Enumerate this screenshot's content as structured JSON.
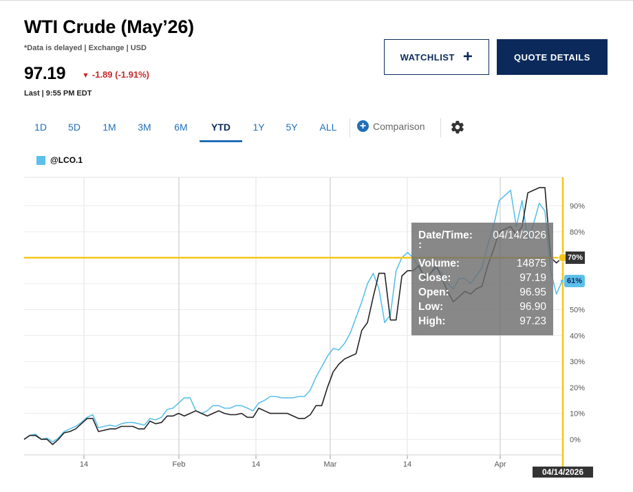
{
  "header": {
    "title": "WTI Crude (May’26)",
    "subtitle": "*Data is delayed | Exchange | USD",
    "price": "97.19",
    "change": "-1.89 (-1.91%)",
    "last_time": "Last | 9:55 PM EDT",
    "change_color": "#c62828"
  },
  "buttons": {
    "watchlist_label": "WATCHLIST",
    "quote_details_label": "QUOTE DETAILS"
  },
  "tabs": [
    {
      "label": "1D"
    },
    {
      "label": "5D"
    },
    {
      "label": "1M"
    },
    {
      "label": "3M"
    },
    {
      "label": "6M"
    },
    {
      "label": "YTD",
      "active": true
    },
    {
      "label": "1Y"
    },
    {
      "label": "5Y"
    },
    {
      "label": "ALL"
    }
  ],
  "comparison_label": "Comparison",
  "legend": {
    "series_name": "@LCO.1",
    "color": "#5bc0eb"
  },
  "tooltip": {
    "datetime_label": "Date/Time:",
    "datetime_value": "04/14/2026",
    "colon": ":",
    "volume_label": "Volume:",
    "volume_value": "14875",
    "close_label": "Close:",
    "close_value": "97.19",
    "open_label": "Open:",
    "open_value": "96.95",
    "low_label": "Low:",
    "low_value": "96.90",
    "high_label": "High:",
    "high_value": "97.23"
  },
  "crosshair": {
    "date_label": "04/14/2026",
    "y_tag": "70%",
    "series_tag": "61%",
    "color": "#f5c518"
  },
  "chart_data": {
    "type": "line",
    "x_ticks": [
      "14",
      "Feb",
      "14",
      "Mar",
      "14",
      "Apr"
    ],
    "y_ticks": [
      "0%",
      "10%",
      "20%",
      "30%",
      "40%",
      "50%",
      "60%",
      "70%",
      "80%",
      "90%"
    ],
    "ylim": [
      -6,
      101
    ],
    "grid": true,
    "series": [
      {
        "color": "#222222",
        "values": [
          0,
          1.5,
          1.5,
          0,
          0,
          -2,
          0,
          2.5,
          3,
          4,
          6,
          8,
          8,
          3,
          3.5,
          4,
          4,
          5,
          5,
          5,
          4,
          4,
          7,
          6,
          6.5,
          9,
          9,
          10,
          9,
          10,
          11,
          10,
          9,
          10,
          11,
          10,
          9.5,
          9.5,
          10,
          8.5,
          8.5,
          12,
          11,
          10,
          10,
          10,
          10,
          9,
          8,
          8,
          9.5,
          13,
          13,
          20,
          26,
          29,
          31,
          32,
          33,
          42,
          45,
          55,
          64,
          64,
          46,
          46,
          63,
          65,
          65,
          67,
          62,
          64,
          67,
          62,
          57,
          53,
          55,
          57,
          56,
          58,
          59,
          67,
          73,
          80,
          81,
          82,
          79,
          82,
          95,
          96,
          97,
          97,
          70,
          68,
          70
        ]
      },
      {
        "name": "@LCO.1",
        "color": "#5bc0eb",
        "values": [
          0,
          1.5,
          2,
          0,
          0.5,
          -1,
          0.5,
          3,
          4,
          5,
          6.5,
          8.5,
          9.5,
          4.5,
          5,
          5.5,
          5,
          6,
          6.5,
          6.5,
          6,
          5.5,
          8,
          7.5,
          8.5,
          11.5,
          12,
          14,
          16,
          16,
          11,
          10,
          11,
          13,
          13,
          12,
          12,
          13,
          13,
          12,
          11,
          14,
          15,
          16.5,
          16.5,
          16,
          16,
          16,
          16.5,
          16.5,
          19,
          24,
          28,
          32,
          35,
          34.5,
          37,
          41,
          47,
          53,
          60,
          64,
          58,
          45,
          48,
          65,
          70,
          72,
          70,
          66,
          63,
          64,
          66,
          64,
          60,
          58,
          62,
          62,
          60,
          63,
          66,
          75,
          82,
          92,
          94,
          96,
          82,
          92,
          77,
          83,
          91,
          88,
          65,
          56,
          61
        ]
      }
    ]
  }
}
